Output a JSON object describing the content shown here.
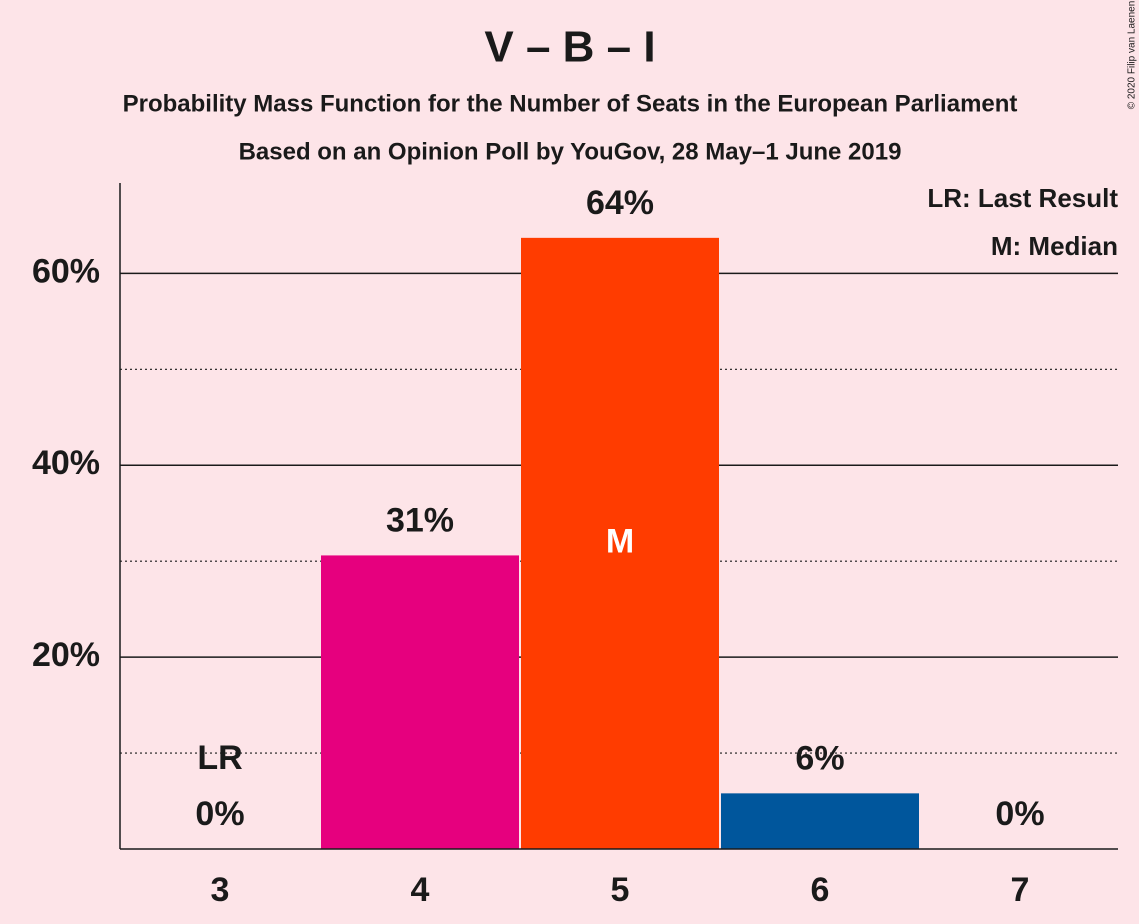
{
  "chart_data": {
    "type": "bar",
    "title": "V – B – I",
    "subtitle": [
      "Probability Mass Function for the Number of Seats in the European Parliament",
      "Based on an Opinion Poll by YouGov, 28 May–1 June 2019"
    ],
    "copyright": "© 2020 Filip van Laenen",
    "categories": [
      "3",
      "4",
      "5",
      "6",
      "7"
    ],
    "values": [
      0,
      30.6,
      63.7,
      5.8,
      0
    ],
    "value_labels": [
      "0%",
      "31%",
      "64%",
      "6%",
      "0%"
    ],
    "colors": [
      null,
      "#e6007e",
      "#ff3c00",
      "#00569c",
      null
    ],
    "ylim": [
      0,
      69
    ],
    "yticks": [
      {
        "value": 20,
        "label": "20%"
      },
      {
        "value": 40,
        "label": "40%"
      },
      {
        "value": 60,
        "label": "60%"
      }
    ],
    "minor_yticks": [
      10,
      30,
      50
    ],
    "grid": true,
    "annotations": [
      {
        "text": "LR",
        "category": "3"
      },
      {
        "text": "M",
        "category": "5"
      }
    ],
    "legend": [
      "LR: Last Result",
      "M: Median"
    ],
    "legend_position": "top-right"
  }
}
